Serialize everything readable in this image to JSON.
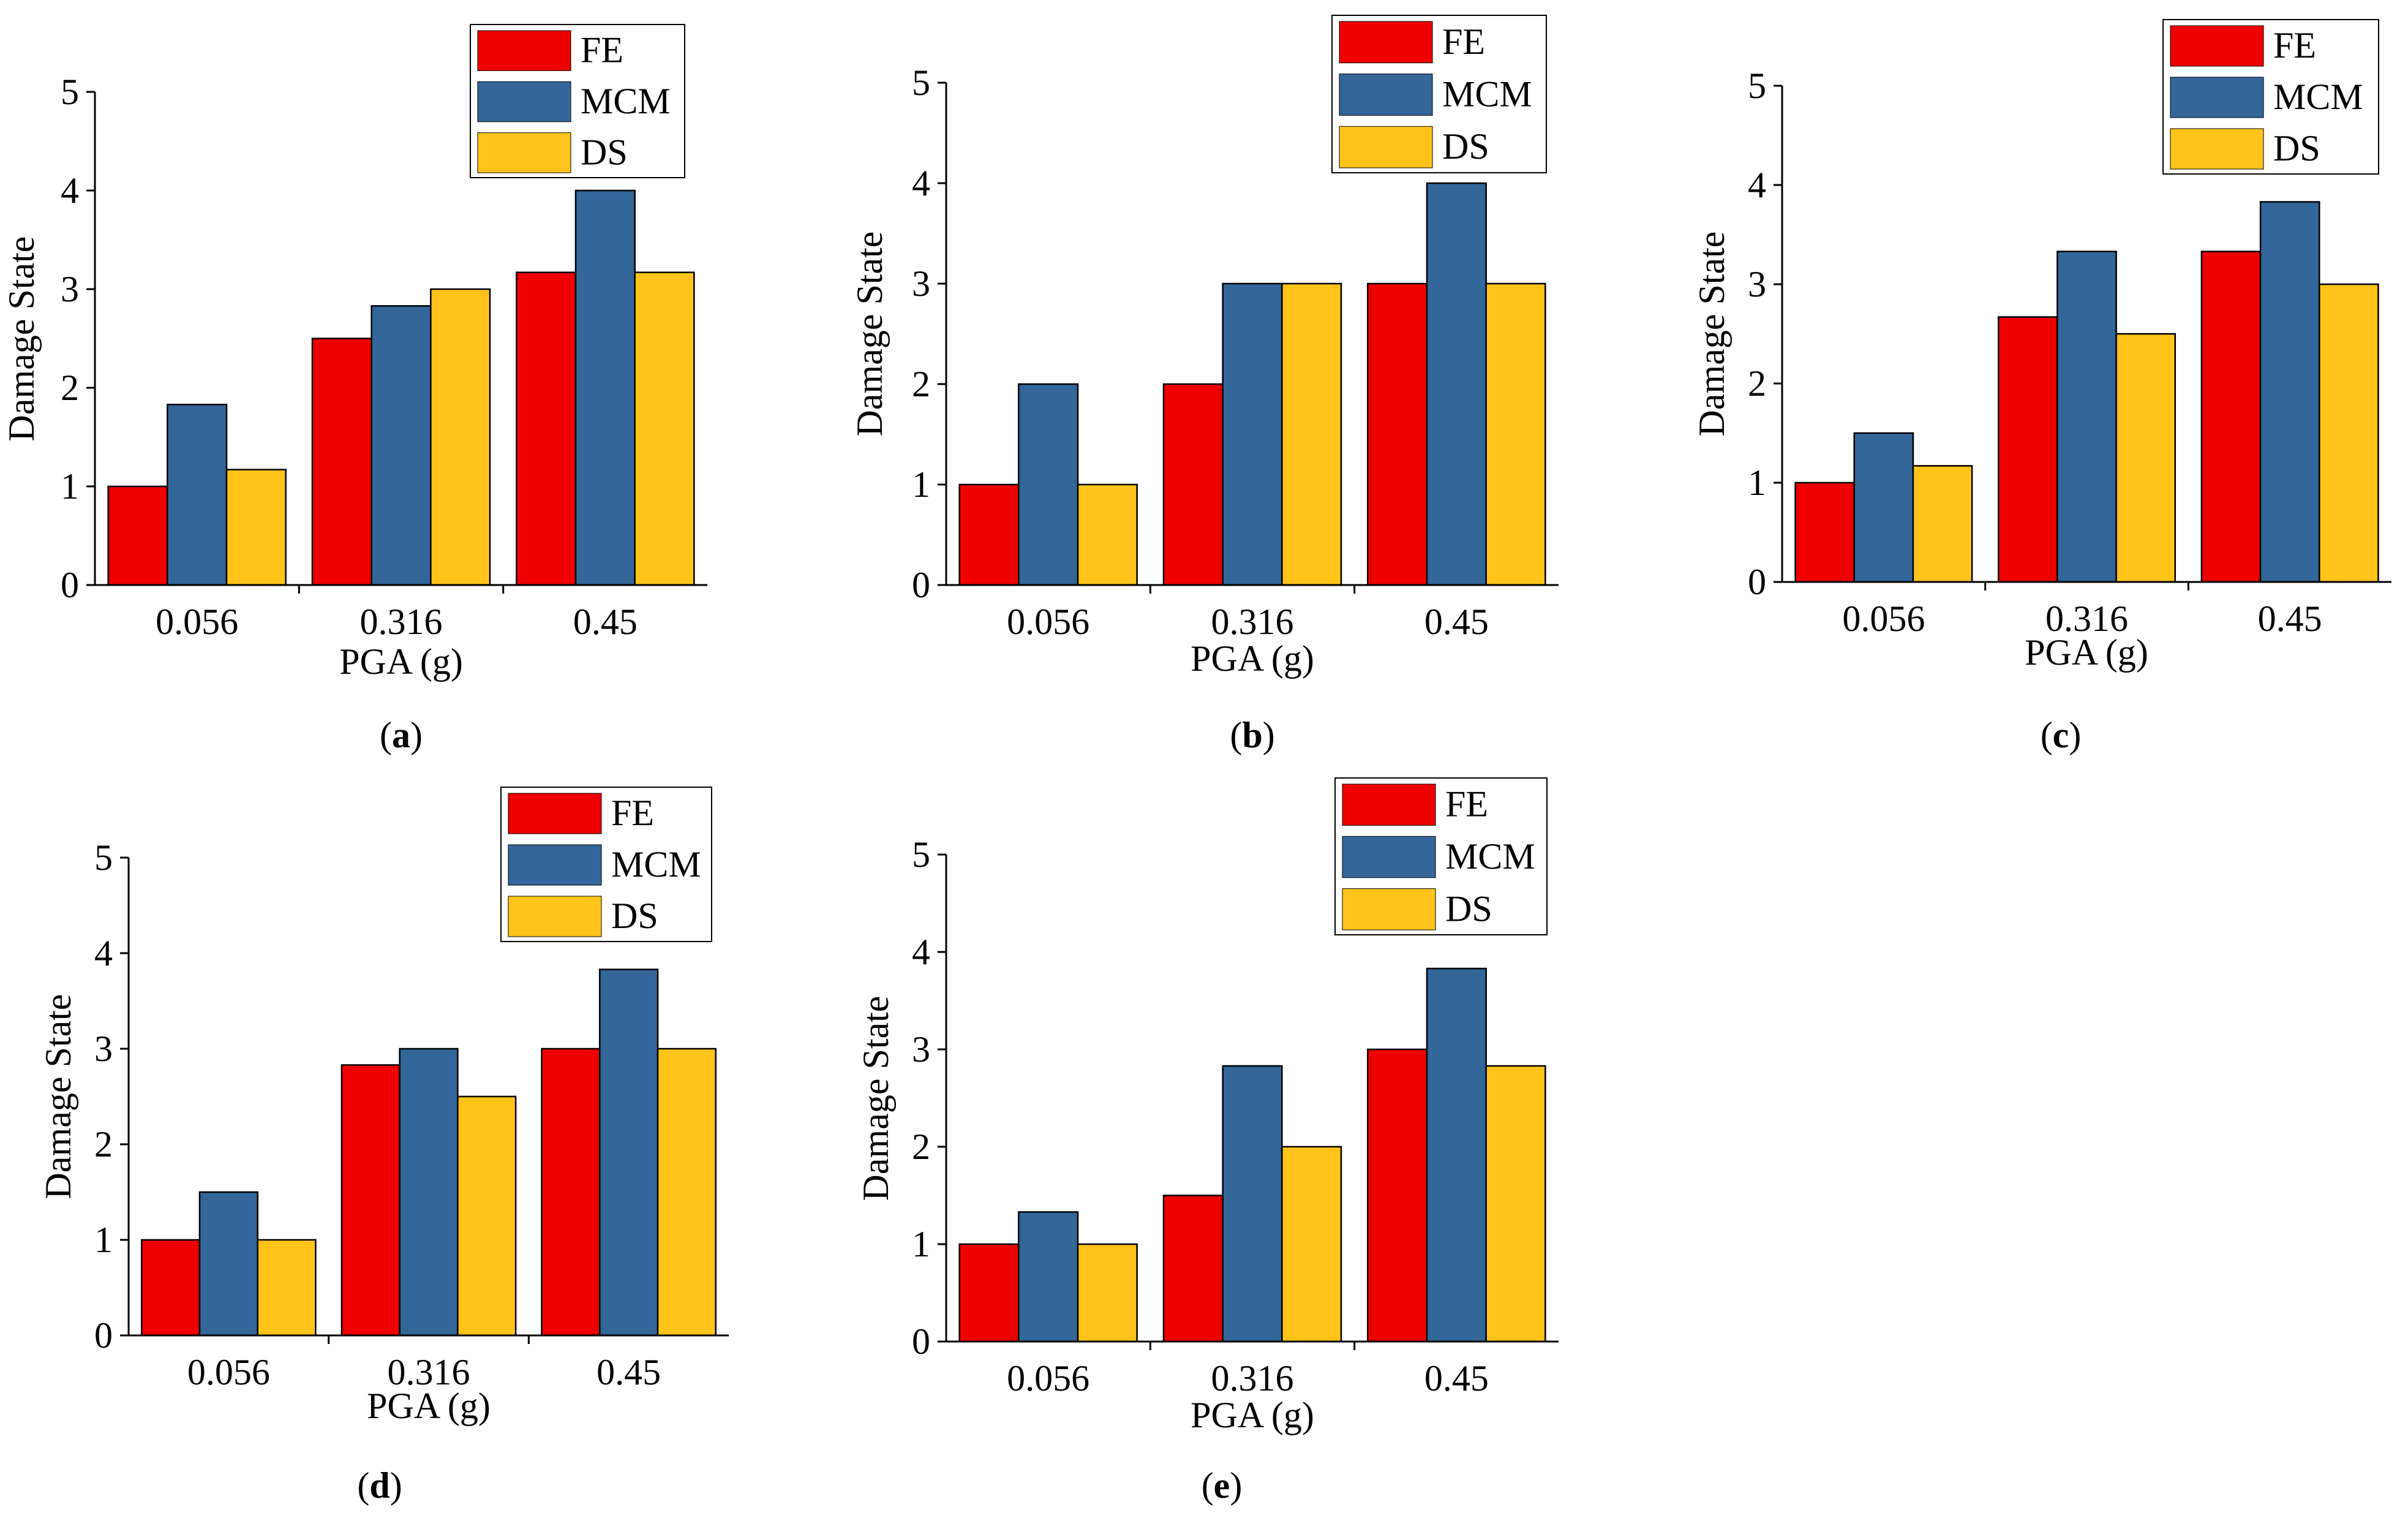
{
  "figure": {
    "legend_labels": [
      "FE",
      "MCM",
      "DS"
    ],
    "colors": {
      "FE": "#ee0000",
      "MCM": "#336699",
      "DS": "#ffc31a"
    }
  },
  "chart_data": [
    {
      "type": "bar",
      "panel_label": "a",
      "xlabel": "PGA (g)",
      "ylabel": "Damage State",
      "categories": [
        "0.056",
        "0.316",
        "0.45"
      ],
      "yticks": [
        0,
        1,
        2,
        3,
        4,
        5
      ],
      "ylim": [
        0,
        5
      ],
      "legend_position": "top-right",
      "series": [
        {
          "name": "FE",
          "values": [
            1.0,
            2.5,
            3.17
          ]
        },
        {
          "name": "MCM",
          "values": [
            1.83,
            2.83,
            4.0
          ]
        },
        {
          "name": "DS",
          "values": [
            1.17,
            3.0,
            3.17
          ]
        }
      ]
    },
    {
      "type": "bar",
      "panel_label": "b",
      "xlabel": "PGA (g)",
      "ylabel": "Damage State",
      "categories": [
        "0.056",
        "0.316",
        "0.45"
      ],
      "yticks": [
        0,
        1,
        2,
        3,
        4,
        5
      ],
      "ylim": [
        0,
        5
      ],
      "legend_position": "top-right",
      "series": [
        {
          "name": "FE",
          "values": [
            1.0,
            2.0,
            3.0
          ]
        },
        {
          "name": "MCM",
          "values": [
            2.0,
            3.0,
            4.0
          ]
        },
        {
          "name": "DS",
          "values": [
            1.0,
            3.0,
            3.0
          ]
        }
      ]
    },
    {
      "type": "bar",
      "panel_label": "c",
      "xlabel": "PGA (g)",
      "ylabel": "Damage State",
      "categories": [
        "0.056",
        "0.316",
        "0.45"
      ],
      "yticks": [
        0,
        1,
        2,
        3,
        4,
        5
      ],
      "ylim": [
        0,
        5
      ],
      "legend_position": "top-right",
      "series": [
        {
          "name": "FE",
          "values": [
            1.0,
            2.67,
            3.33
          ]
        },
        {
          "name": "MCM",
          "values": [
            1.5,
            3.33,
            3.83
          ]
        },
        {
          "name": "DS",
          "values": [
            1.17,
            2.5,
            3.0
          ]
        }
      ]
    },
    {
      "type": "bar",
      "panel_label": "d",
      "xlabel": "PGA (g)",
      "ylabel": "Damage State",
      "categories": [
        "0.056",
        "0.316",
        "0.45"
      ],
      "yticks": [
        0,
        1,
        2,
        3,
        4,
        5
      ],
      "ylim": [
        0,
        5
      ],
      "legend_position": "top-right",
      "series": [
        {
          "name": "FE",
          "values": [
            1.0,
            2.83,
            3.0
          ]
        },
        {
          "name": "MCM",
          "values": [
            1.5,
            3.0,
            3.83
          ]
        },
        {
          "name": "DS",
          "values": [
            1.0,
            2.5,
            3.0
          ]
        }
      ]
    },
    {
      "type": "bar",
      "panel_label": "e",
      "xlabel": "PGA (g)",
      "ylabel": "Damage State",
      "categories": [
        "0.056",
        "0.316",
        "0.45"
      ],
      "yticks": [
        0,
        1,
        2,
        3,
        4,
        5
      ],
      "ylim": [
        0,
        5
      ],
      "legend_position": "top-right",
      "series": [
        {
          "name": "FE",
          "values": [
            1.0,
            1.5,
            3.0
          ]
        },
        {
          "name": "MCM",
          "values": [
            1.33,
            2.83,
            3.83
          ]
        },
        {
          "name": "DS",
          "values": [
            1.0,
            2.0,
            2.83
          ]
        }
      ]
    }
  ]
}
